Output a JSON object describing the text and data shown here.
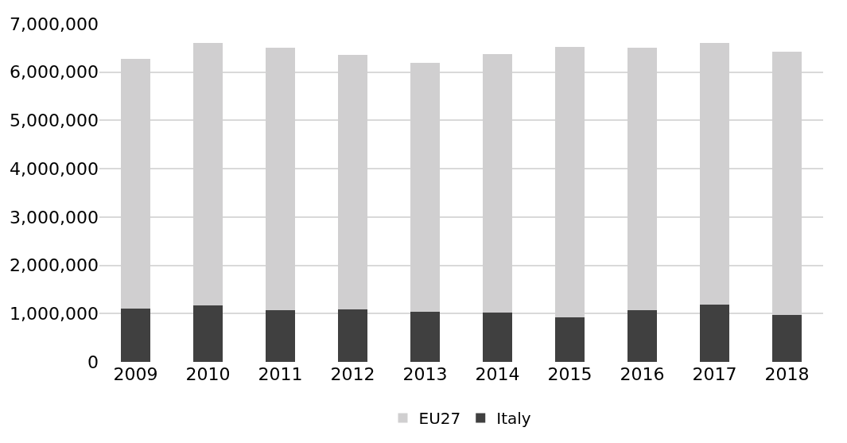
{
  "chart_data": {
    "type": "bar",
    "stacked": true,
    "categories": [
      "2009",
      "2010",
      "2011",
      "2012",
      "2013",
      "2014",
      "2015",
      "2016",
      "2017",
      "2018"
    ],
    "series": [
      {
        "name": "Italy",
        "color": "#404040",
        "values": [
          1100000,
          1170000,
          1070000,
          1080000,
          1040000,
          1020000,
          930000,
          1070000,
          1180000,
          970000
        ]
      },
      {
        "name": "EU27",
        "color": "#d0cfd0",
        "values": [
          5170000,
          5430000,
          5440000,
          5280000,
          5160000,
          5350000,
          5590000,
          5440000,
          5420000,
          5460000
        ]
      }
    ],
    "ylim": [
      0,
      7000000
    ],
    "yticks": [
      {
        "value": 0,
        "label": "0"
      },
      {
        "value": 1000000,
        "label": "1,000,000"
      },
      {
        "value": 2000000,
        "label": "2,000,000"
      },
      {
        "value": 3000000,
        "label": "3,000,000"
      },
      {
        "value": 4000000,
        "label": "4,000,000"
      },
      {
        "value": 5000000,
        "label": "5,000,000"
      },
      {
        "value": 6000000,
        "label": "6,000,000"
      },
      {
        "value": 7000000,
        "label": "7,000,000"
      }
    ],
    "grid": "y",
    "legend": "bottom"
  }
}
